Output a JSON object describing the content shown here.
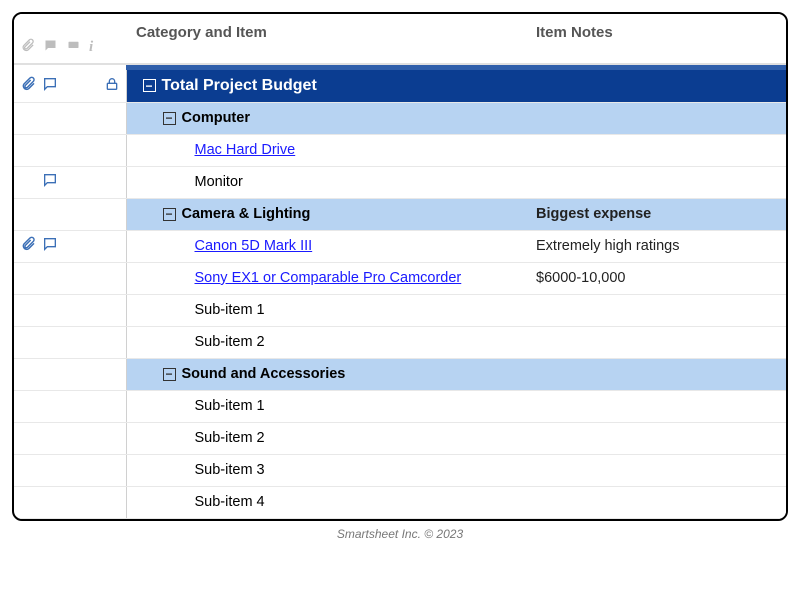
{
  "columns": {
    "category": "Category and Item",
    "notes": "Item Notes"
  },
  "toggle_glyph": "−",
  "colors": {
    "root_bg": "#0b3d91",
    "group_bg": "#b7d3f2",
    "link": "#1a1aff",
    "icon_blue": "#3b6fb6",
    "icon_gray": "#bdbdbd"
  },
  "rows": [
    {
      "id": "root",
      "level": 0,
      "toggle": true,
      "label": "Total Project Budget",
      "notes": "",
      "icons": {
        "attach": true,
        "comment": true,
        "lock": true
      }
    },
    {
      "id": "computer",
      "level": 1,
      "toggle": true,
      "label": "Computer",
      "notes": ""
    },
    {
      "id": "mac",
      "level": 2,
      "label": "Mac Hard Drive",
      "link": true,
      "notes": ""
    },
    {
      "id": "monitor",
      "level": 2,
      "label": "Monitor",
      "notes": "",
      "icons": {
        "comment": true
      }
    },
    {
      "id": "camera",
      "level": 1,
      "toggle": true,
      "label": "Camera & Lighting",
      "notes": "Biggest expense"
    },
    {
      "id": "canon",
      "level": 2,
      "label": "Canon 5D Mark III",
      "link": true,
      "notes": "Extremely high ratings",
      "icons": {
        "attach": true,
        "comment": true
      }
    },
    {
      "id": "sony",
      "level": 2,
      "label": "Sony EX1 or Comparable Pro Camcorder",
      "link": true,
      "notes": "$6000-10,000"
    },
    {
      "id": "s1",
      "level": 2,
      "label": "Sub-item 1",
      "notes": ""
    },
    {
      "id": "s2",
      "level": 2,
      "label": "Sub-item 2",
      "notes": ""
    },
    {
      "id": "sound",
      "level": 1,
      "toggle": true,
      "label": "Sound and Accessories",
      "notes": ""
    },
    {
      "id": "sa1",
      "level": 2,
      "label": "Sub-item 1",
      "notes": ""
    },
    {
      "id": "sa2",
      "level": 2,
      "label": "Sub-item 2",
      "notes": ""
    },
    {
      "id": "sa3",
      "level": 2,
      "label": "Sub-item 3",
      "notes": ""
    },
    {
      "id": "sa4",
      "level": 2,
      "label": "Sub-item 4",
      "notes": ""
    }
  ],
  "footer": "Smartsheet Inc. © 2023"
}
